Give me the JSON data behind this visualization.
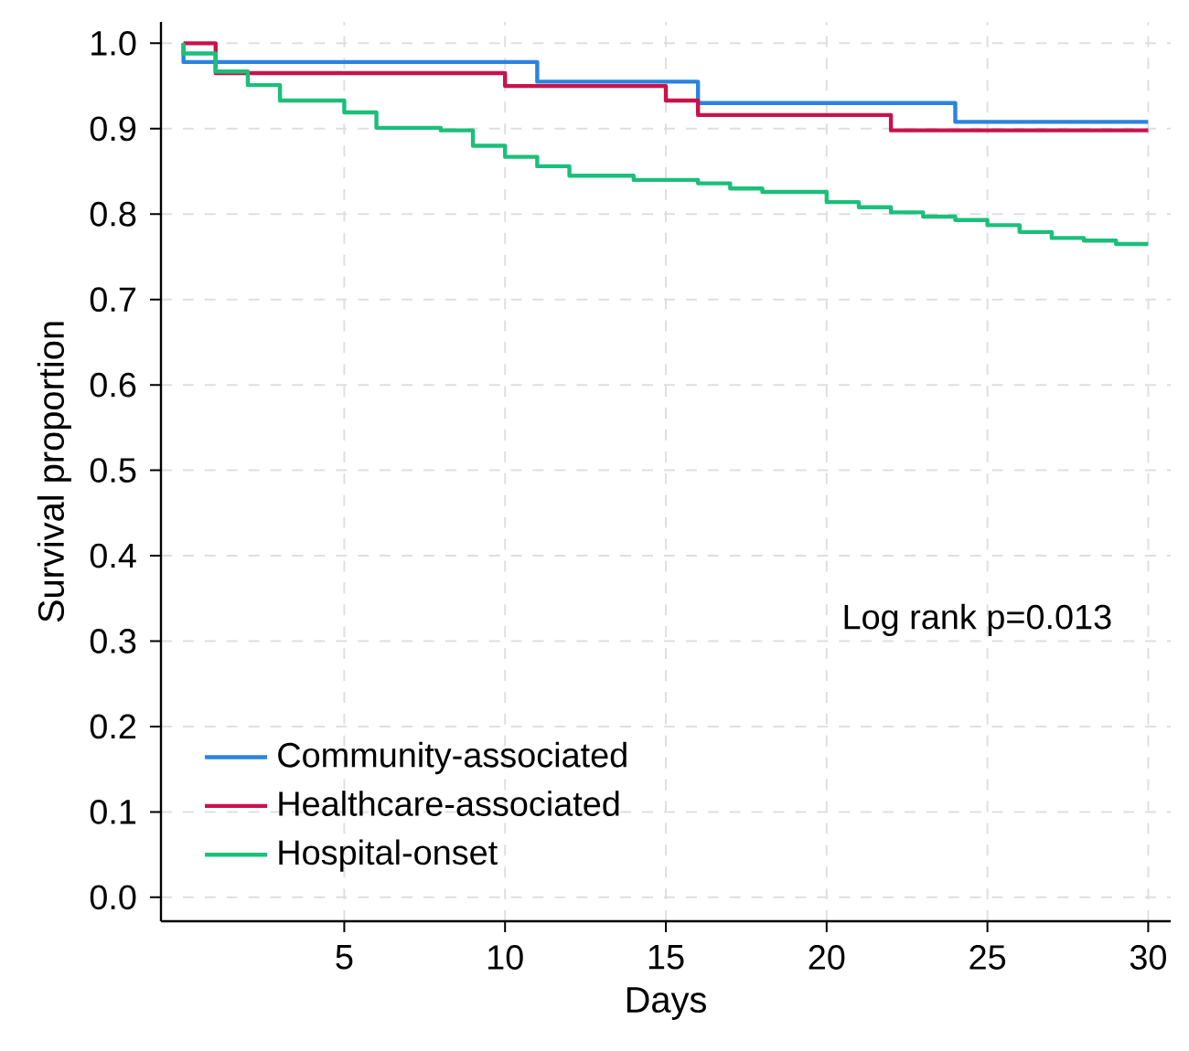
{
  "chart_data": {
    "type": "step",
    "xlabel": "Days",
    "ylabel": "Survival proportion",
    "xlim": [
      -0.7,
      30.7
    ],
    "ylim": [
      -0.028,
      1.025
    ],
    "xticks": [
      5,
      10,
      15,
      20,
      25,
      30
    ],
    "yticks": [
      {
        "value": 0,
        "label": "0.0"
      },
      0.1,
      0.2,
      0.3,
      0.4,
      0.5,
      0.6,
      0.7,
      0.8,
      0.9,
      {
        "value": 1,
        "label": "1.0"
      }
    ],
    "grid": true,
    "legend": "bottom left",
    "annotations": [
      "Log rank p=0.013"
    ],
    "series": [
      {
        "name": "Community-associated",
        "color": "#2b83e0",
        "x": [
          0,
          0,
          11,
          16,
          24,
          30
        ],
        "values": [
          1.0,
          0.978,
          0.955,
          0.93,
          0.908,
          0.908
        ]
      },
      {
        "name": "Healthcare-associated",
        "color": "#c8134a",
        "x": [
          0,
          1,
          10,
          15,
          16,
          22,
          30
        ],
        "values": [
          1.0,
          0.965,
          0.95,
          0.933,
          0.916,
          0.898,
          0.898
        ]
      },
      {
        "name": "Hospital-onset",
        "color": "#1bbf7a",
        "x": [
          0,
          0,
          1,
          2,
          3,
          5,
          6,
          8,
          9,
          10,
          11,
          12,
          14,
          16,
          17,
          18,
          20,
          21,
          22,
          23,
          24,
          25,
          26,
          27,
          28,
          29,
          30
        ],
        "values": [
          1.0,
          0.988,
          0.967,
          0.951,
          0.933,
          0.919,
          0.901,
          0.898,
          0.88,
          0.867,
          0.856,
          0.845,
          0.84,
          0.836,
          0.83,
          0.826,
          0.814,
          0.808,
          0.802,
          0.797,
          0.793,
          0.787,
          0.779,
          0.772,
          0.769,
          0.765,
          0.765
        ]
      }
    ]
  }
}
